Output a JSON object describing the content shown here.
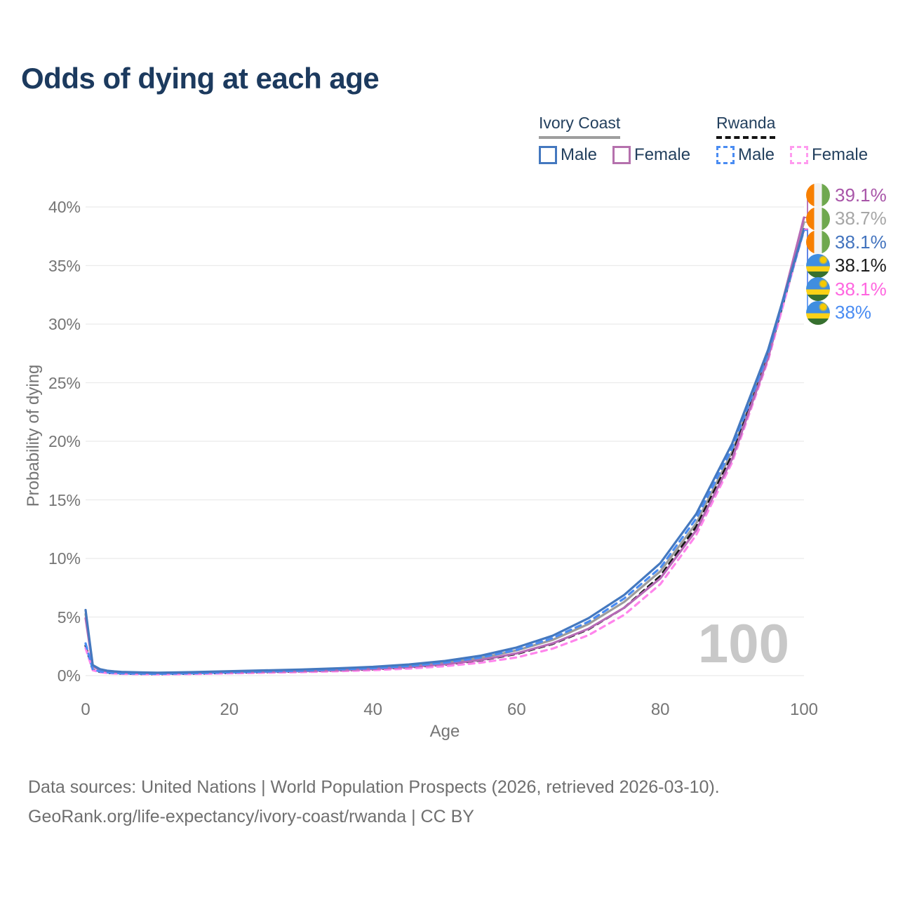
{
  "title": "Odds of dying at each age",
  "watermark": "100",
  "y_axis": {
    "label": "Probability of dying",
    "tick_labels": [
      "0%",
      "5%",
      "10%",
      "15%",
      "20%",
      "25%",
      "30%",
      "35%",
      "40%"
    ],
    "tick_values": [
      0,
      5,
      10,
      15,
      20,
      25,
      30,
      35,
      40
    ]
  },
  "x_axis": {
    "label": "Age",
    "tick_labels": [
      "0",
      "20",
      "40",
      "60",
      "80",
      "100"
    ],
    "tick_values": [
      0,
      20,
      40,
      60,
      80,
      100
    ]
  },
  "legend": {
    "groups": [
      {
        "label": "Ivory Coast",
        "underline_style": "solid",
        "underline_color": "#9E9E9E",
        "items": [
          {
            "label": "Male",
            "color": "#4478BF",
            "dashed": false
          },
          {
            "label": "Female",
            "color": "#B571AD",
            "dashed": false
          }
        ]
      },
      {
        "label": "Rwanda",
        "underline_style": "dashed",
        "underline_color": "#141414",
        "items": [
          {
            "label": "Male",
            "color": "#4A8CF2",
            "dashed": true
          },
          {
            "label": "Female",
            "color": "#FF9BEF",
            "dashed": true
          }
        ]
      }
    ]
  },
  "chart_data": {
    "type": "line",
    "title": "Odds of dying at each age",
    "xlabel": "Age",
    "ylabel": "Probability of dying",
    "xlim": [
      0,
      100
    ],
    "ylim_percent": [
      0,
      40
    ],
    "grid": "horizontal-only",
    "legend_position": "top-right",
    "x_ages": [
      0,
      1,
      2,
      3,
      4,
      5,
      8,
      10,
      15,
      20,
      25,
      30,
      35,
      40,
      45,
      50,
      55,
      60,
      65,
      70,
      75,
      80,
      85,
      90,
      95,
      100
    ],
    "series": [
      {
        "name": "Ivory Coast Female",
        "country": "Ivory Coast",
        "sex": "Female",
        "color": "#B56AB5",
        "dashed": false,
        "flag": "ivory-coast",
        "end_label": "39.1%",
        "end_label_color": "#A855A8",
        "values_percent": [
          4.9,
          0.8,
          0.46,
          0.35,
          0.29,
          0.25,
          0.21,
          0.2,
          0.22,
          0.28,
          0.33,
          0.38,
          0.46,
          0.57,
          0.73,
          0.97,
          1.33,
          1.9,
          2.75,
          4.0,
          5.8,
          8.3,
          12.4,
          18.5,
          27.1,
          39.1
        ]
      },
      {
        "name": "Ivory Coast Both sexes",
        "country": "Ivory Coast",
        "sex": "Both",
        "color": "#9C9C9C",
        "dashed": false,
        "flag": "ivory-coast",
        "end_label": "38.7%",
        "end_label_color": "#A6A6A6",
        "values_percent": [
          5.25,
          0.85,
          0.5,
          0.38,
          0.32,
          0.28,
          0.24,
          0.22,
          0.26,
          0.33,
          0.39,
          0.45,
          0.54,
          0.66,
          0.84,
          1.1,
          1.5,
          2.15,
          3.05,
          4.4,
          6.3,
          8.9,
          13.0,
          19.1,
          27.4,
          38.7
        ]
      },
      {
        "name": "Ivory Coast Male",
        "country": "Ivory Coast",
        "sex": "Male",
        "color": "#4478BF",
        "dashed": false,
        "flag": "ivory-coast",
        "end_label": "38.1%",
        "end_label_color": "#4273BE",
        "values_percent": [
          5.6,
          0.9,
          0.55,
          0.42,
          0.36,
          0.32,
          0.27,
          0.25,
          0.3,
          0.38,
          0.45,
          0.52,
          0.62,
          0.75,
          0.95,
          1.25,
          1.7,
          2.4,
          3.4,
          4.9,
          6.9,
          9.6,
          13.8,
          19.8,
          27.8,
          38.1
        ]
      },
      {
        "name": "Rwanda Both sexes",
        "country": "Rwanda",
        "sex": "Both",
        "color": "#161616",
        "dashed": true,
        "flag": "rwanda",
        "end_label": "38.1%",
        "end_label_color": "#1C1C1C",
        "values_percent": [
          2.55,
          0.5,
          0.32,
          0.24,
          0.2,
          0.17,
          0.14,
          0.13,
          0.17,
          0.24,
          0.3,
          0.36,
          0.44,
          0.54,
          0.7,
          0.94,
          1.3,
          1.85,
          2.7,
          3.95,
          5.8,
          8.5,
          12.7,
          18.8,
          27.2,
          38.1
        ]
      },
      {
        "name": "Rwanda Female",
        "country": "Rwanda",
        "sex": "Female",
        "color": "#FF85EC",
        "dashed": true,
        "flag": "rwanda",
        "end_label": "38.1%",
        "end_label_color": "#FF66E0",
        "values_percent": [
          2.35,
          0.46,
          0.29,
          0.22,
          0.18,
          0.15,
          0.12,
          0.11,
          0.14,
          0.2,
          0.25,
          0.3,
          0.37,
          0.46,
          0.6,
          0.8,
          1.1,
          1.55,
          2.3,
          3.45,
          5.2,
          7.8,
          12.0,
          18.2,
          26.9,
          38.1
        ]
      },
      {
        "name": "Rwanda Male",
        "country": "Rwanda",
        "sex": "Male",
        "color": "#4A8CF2",
        "dashed": true,
        "flag": "rwanda",
        "end_label": "38%",
        "end_label_color": "#4A8CF2",
        "values_percent": [
          2.75,
          0.55,
          0.35,
          0.27,
          0.22,
          0.19,
          0.16,
          0.15,
          0.2,
          0.28,
          0.35,
          0.42,
          0.52,
          0.64,
          0.82,
          1.1,
          1.55,
          2.2,
          3.2,
          4.6,
          6.6,
          9.2,
          13.4,
          19.4,
          27.5,
          38.0
        ]
      }
    ]
  },
  "footer": {
    "line1": "Data sources: United Nations | World Population Prospects (2026, retrieved 2026-03-10).",
    "line2": "GeoRank.org/life-expectancy/ivory-coast/rwanda | CC BY"
  }
}
